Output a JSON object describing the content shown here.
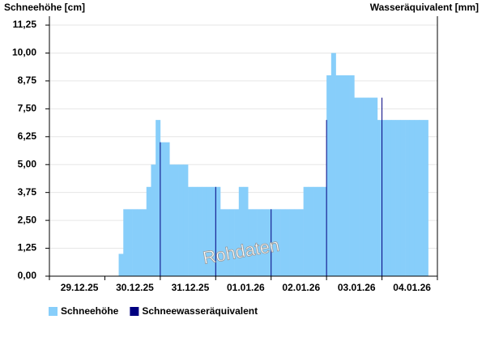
{
  "chart_data": {
    "type": "bar",
    "y_label": "Schneehöhe [cm]",
    "y2_label": "Wasseräquivalent [mm]",
    "watermark": "Rohdaten",
    "categories": [
      null,
      null,
      null,
      null,
      null,
      null,
      "29.12.25",
      null,
      null,
      null,
      null,
      null,
      null,
      null,
      null,
      null,
      null,
      null,
      "30.12.25",
      null,
      null,
      null,
      null,
      null,
      null,
      null,
      null,
      null,
      null,
      null,
      "31.12.25",
      null,
      null,
      null,
      null,
      null,
      null,
      null,
      null,
      null,
      null,
      null,
      "01.01.26",
      null,
      null,
      null,
      null,
      null,
      null,
      null,
      null,
      null,
      null,
      null,
      "02.01.26",
      null,
      null,
      null,
      null,
      null,
      null,
      null,
      null,
      null,
      null,
      null,
      "03.01.26",
      null,
      null,
      null,
      null,
      null,
      null,
      null,
      null,
      null,
      null,
      null,
      "04.01.26",
      null,
      null,
      null,
      null,
      null
    ],
    "series": [
      {
        "name": "Schneehöhe",
        "color": "#87cefa",
        "values": [
          0,
          0,
          0,
          0,
          0,
          0,
          0,
          0,
          0,
          0,
          0,
          0,
          0,
          0,
          0,
          1,
          3,
          3,
          3,
          3,
          3,
          4,
          5,
          7,
          6,
          6,
          5,
          5,
          5,
          5,
          4,
          4,
          4,
          4,
          4,
          4,
          4,
          3,
          3,
          3,
          3,
          4,
          4,
          3,
          3,
          3,
          3,
          3,
          3,
          3,
          3,
          3,
          3,
          3,
          3,
          4,
          4,
          4,
          4,
          4,
          9,
          10,
          9,
          9,
          9,
          9,
          8,
          8,
          8,
          8,
          8,
          7,
          7,
          7,
          7,
          7,
          7,
          7,
          7,
          7,
          7,
          7,
          0,
          0
        ]
      },
      {
        "name": "Schneewasseräquivalent",
        "color": "#000080",
        "values": [
          null,
          null,
          null,
          null,
          null,
          null,
          null,
          null,
          null,
          null,
          null,
          null,
          null,
          null,
          null,
          null,
          null,
          null,
          null,
          null,
          null,
          null,
          null,
          null,
          6,
          null,
          null,
          null,
          null,
          null,
          null,
          null,
          null,
          null,
          null,
          null,
          4,
          null,
          null,
          null,
          null,
          null,
          null,
          null,
          null,
          null,
          null,
          null,
          3,
          null,
          null,
          null,
          null,
          null,
          null,
          null,
          null,
          null,
          null,
          null,
          7,
          null,
          null,
          null,
          null,
          null,
          null,
          null,
          null,
          null,
          null,
          null,
          8,
          null,
          null,
          null,
          null,
          null,
          null,
          null,
          null,
          null,
          null,
          null
        ]
      }
    ],
    "ylim": [
      0,
      11.65
    ],
    "yticks": [
      {
        "value": 0,
        "label": "0,00"
      },
      {
        "value": 1.25,
        "label": "1,25"
      },
      {
        "value": 2.5,
        "label": "2,50"
      },
      {
        "value": 3.75,
        "label": "3,75"
      },
      {
        "value": 5,
        "label": "5,00"
      },
      {
        "value": 6.25,
        "label": "6,25"
      },
      {
        "value": 7.5,
        "label": "7,50"
      },
      {
        "value": 8.75,
        "label": "8,75"
      },
      {
        "value": 10,
        "label": "10,00"
      },
      {
        "value": 11.25,
        "label": "11,25"
      }
    ],
    "grid": true
  }
}
